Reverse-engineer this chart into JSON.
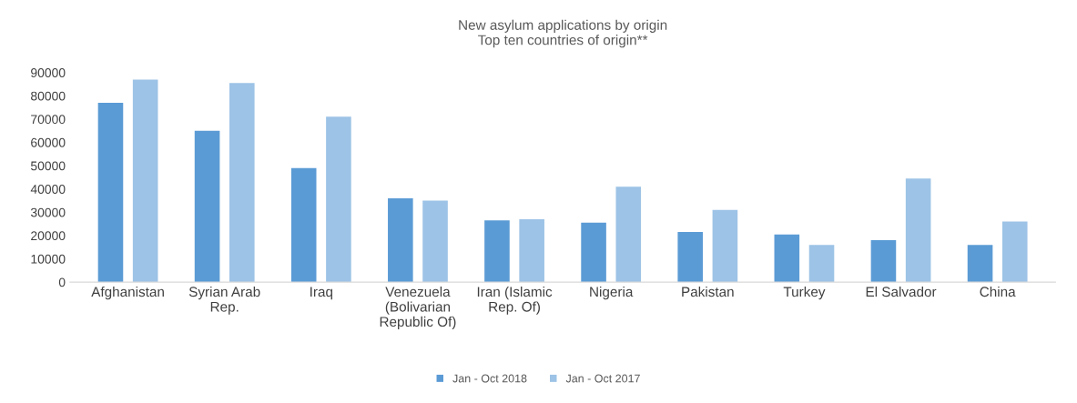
{
  "chart_data": {
    "type": "bar",
    "title": "New asylum applications by origin\nTop ten countries of origin**",
    "categories": [
      "Afghanistan",
      "Syrian Arab\nRep.",
      "Iraq",
      "Venezuela\n(Bolivarian\nRepublic Of)",
      "Iran (Islamic\nRep. Of)",
      "Nigeria",
      "Pakistan",
      "Turkey",
      "El Salvador",
      "China"
    ],
    "series": [
      {
        "name": "Jan - Oct 2018",
        "color": "#5b9bd5",
        "values": [
          77000,
          65000,
          49000,
          36000,
          26500,
          25500,
          21500,
          20500,
          18000,
          16000
        ]
      },
      {
        "name": "Jan - Oct 2017",
        "color": "#9dc3e6",
        "values": [
          87000,
          85500,
          71000,
          35000,
          27000,
          41000,
          31000,
          16000,
          44500,
          26000
        ]
      }
    ],
    "ylim": [
      0,
      90000
    ],
    "yticks": [
      0,
      10000,
      20000,
      30000,
      40000,
      50000,
      60000,
      70000,
      80000,
      90000
    ],
    "grid": false,
    "legend": "bottom"
  }
}
